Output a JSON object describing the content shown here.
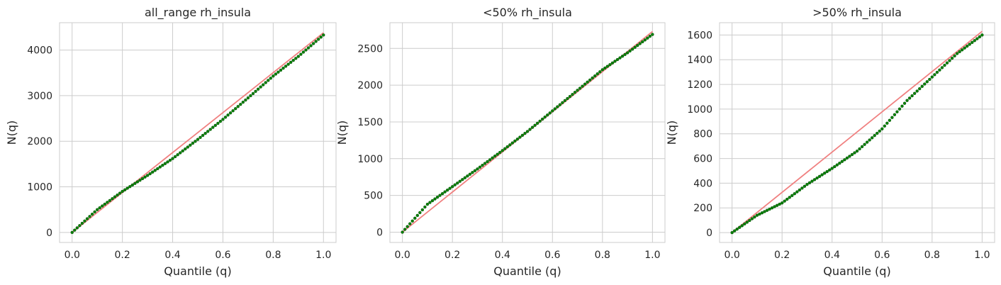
{
  "colors": {
    "reference_line": "#f08080",
    "points": "#008000",
    "grid": "#cccccc",
    "text": "#262626"
  },
  "chart_data": [
    {
      "type": "scatter",
      "title": "all_range rh_insula",
      "xlabel": "Quantile (q)",
      "ylabel": "N(q)",
      "xlim": [
        -0.05,
        1.05
      ],
      "ylim": [
        -220,
        4600
      ],
      "xticks": [
        0.0,
        0.2,
        0.4,
        0.6,
        0.8,
        1.0
      ],
      "xtick_labels": [
        "0.0",
        "0.2",
        "0.4",
        "0.6",
        "0.8",
        "1.0"
      ],
      "yticks": [
        0,
        1000,
        2000,
        3000,
        4000
      ],
      "ytick_labels": [
        "0",
        "1000",
        "2000",
        "3000",
        "4000"
      ],
      "grid": true,
      "reference_line": {
        "x": [
          0,
          1
        ],
        "y": [
          0,
          4380
        ]
      },
      "series": [
        {
          "x": [
            0,
            0.1,
            0.2,
            0.3,
            0.4,
            0.5,
            0.6,
            0.7,
            0.8,
            0.9,
            1.0
          ],
          "y": [
            0,
            500,
            900,
            1250,
            1620,
            2040,
            2480,
            2950,
            3430,
            3860,
            4330
          ]
        }
      ]
    },
    {
      "type": "scatter",
      "title": "<50% rh_insula",
      "xlabel": "Quantile (q)",
      "ylabel": "N(q)",
      "xlim": [
        -0.05,
        1.05
      ],
      "ylim": [
        -140,
        2850
      ],
      "xticks": [
        0.0,
        0.2,
        0.4,
        0.6,
        0.8,
        1.0
      ],
      "xtick_labels": [
        "0.0",
        "0.2",
        "0.4",
        "0.6",
        "0.8",
        "1.0"
      ],
      "yticks": [
        0,
        500,
        1000,
        1500,
        2000,
        2500
      ],
      "ytick_labels": [
        "0",
        "500",
        "1000",
        "1500",
        "2000",
        "2500"
      ],
      "grid": true,
      "reference_line": {
        "x": [
          0,
          1
        ],
        "y": [
          0,
          2730
        ]
      },
      "series": [
        {
          "x": [
            0,
            0.1,
            0.2,
            0.3,
            0.4,
            0.5,
            0.6,
            0.7,
            0.8,
            0.9,
            1.0
          ],
          "y": [
            0,
            380,
            620,
            860,
            1110,
            1370,
            1650,
            1930,
            2210,
            2440,
            2690
          ]
        }
      ]
    },
    {
      "type": "scatter",
      "title": ">50% rh_insula",
      "xlabel": "Quantile (q)",
      "ylabel": "N(q)",
      "xlim": [
        -0.05,
        1.05
      ],
      "ylim": [
        -80,
        1700
      ],
      "xticks": [
        0.0,
        0.2,
        0.4,
        0.6,
        0.8,
        1.0
      ],
      "xtick_labels": [
        "0.0",
        "0.2",
        "0.4",
        "0.6",
        "0.8",
        "1.0"
      ],
      "yticks": [
        0,
        200,
        400,
        600,
        800,
        1000,
        1200,
        1400,
        1600
      ],
      "ytick_labels": [
        "0",
        "200",
        "400",
        "600",
        "800",
        "1000",
        "1200",
        "1400",
        "1600"
      ],
      "grid": true,
      "reference_line": {
        "x": [
          0,
          1
        ],
        "y": [
          0,
          1630
        ]
      },
      "series": [
        {
          "x": [
            0,
            0.1,
            0.2,
            0.3,
            0.4,
            0.5,
            0.6,
            0.7,
            0.8,
            0.9,
            1.0
          ],
          "y": [
            0,
            140,
            240,
            390,
            520,
            660,
            840,
            1070,
            1260,
            1450,
            1600
          ]
        }
      ]
    }
  ]
}
